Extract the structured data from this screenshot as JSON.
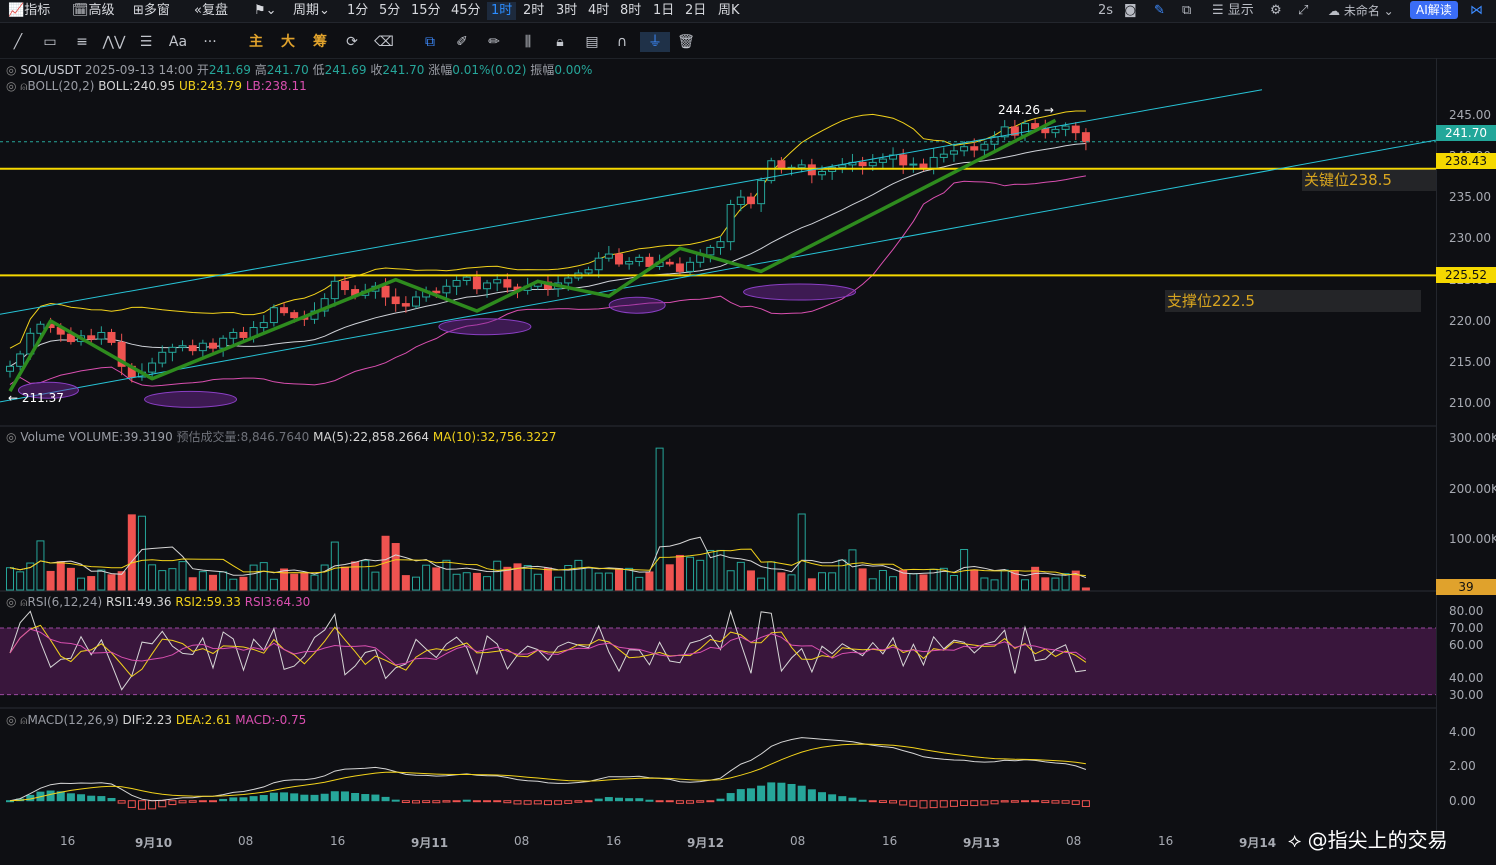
{
  "topbar": {
    "items": [
      "指标",
      "高级",
      "多窗",
      "复盘",
      "周期",
      "1分",
      "5分",
      "15分",
      "45分",
      "1时",
      "2时",
      "3时",
      "4时",
      "8时",
      "1日",
      "2日",
      "周K"
    ],
    "active_period": "1时",
    "refresh": "2s",
    "display": "显示",
    "user": "未命名",
    "ai_button": "AI解读"
  },
  "toolbar": {
    "text_tool": "Aa",
    "more": "···",
    "main_label": "主",
    "big_label": "大",
    "chip_label": "筹"
  },
  "main_panel": {
    "symbol": "SOL/USDT",
    "datetime": "2025-09-13 14:00",
    "open_label": "开",
    "open": "241.69",
    "high_label": "高",
    "high": "241.70",
    "low_label": "低",
    "low": "241.69",
    "close_label": "收",
    "close": "241.70",
    "change_label": "涨幅",
    "change": "0.01%(0.02)",
    "amplitude_label": "振幅",
    "amplitude": "0.00%",
    "boll_name": "BOLL(20,2)",
    "boll_mid": "BOLL:240.95",
    "boll_ub": "UB:243.79",
    "boll_lb": "LB:238.11",
    "high_marker": "244.26",
    "low_marker": "211.37",
    "last_price_tag": "241.70",
    "line1_tag": "238.43",
    "line2_tag": "225.52",
    "note_key": "关键位238.5",
    "note_support": "支撑位222.5",
    "price_ticks": [
      "245.00",
      "240.00",
      "235.00",
      "230.00",
      "225.00",
      "220.00",
      "215.00",
      "210.00"
    ]
  },
  "volume_panel": {
    "name": "Volume",
    "volume": "VOLUME:39.3190",
    "est_label": "预估成交量:8,846.7640",
    "ma5": "MA(5):22,858.2664",
    "ma10": "MA(10):32,756.3227",
    "ticks": [
      "300.00K",
      "200.00K",
      "100.00K"
    ],
    "last_tag": "39"
  },
  "rsi_panel": {
    "name": "RSI(6,12,24)",
    "rsi1": "RSI1:49.36",
    "rsi2": "RSI2:59.33",
    "rsi3": "RSI3:64.30",
    "ticks": [
      "80.00",
      "70.00",
      "60.00",
      "40.00",
      "30.00"
    ]
  },
  "macd_panel": {
    "name": "MACD(12,26,9)",
    "dif": "DIF:2.23",
    "dea": "DEA:2.61",
    "macd": "MACD:-0.75",
    "ticks": [
      "4.00",
      "2.00",
      "0.00"
    ]
  },
  "x_axis": [
    "16",
    "9月10",
    "08",
    "16",
    "9月11",
    "08",
    "16",
    "9月12",
    "08",
    "16",
    "9月13",
    "08",
    "16",
    "9月14"
  ],
  "watermark": "@指尖上的交易",
  "colors": {
    "up": "#26a69a",
    "down": "#ef5350",
    "accent": "#2b8cff",
    "level_line": "#f5d800",
    "channel": "#27c3d6",
    "trend": "#2e8b1e",
    "boll_upper": "#f2d21b",
    "boll_lower": "#d94fb0"
  },
  "chart_data": {
    "type": "candlestick",
    "symbol": "SOL/USDT",
    "interval": "1时",
    "ylim": [
      208,
      247
    ],
    "horizontal_levels": [
      238.43,
      225.52
    ],
    "trend_points": [
      211.5,
      220.0,
      213.0,
      225.0,
      221.2,
      224.8,
      223.0,
      228.8,
      226.0,
      244.3
    ],
    "closes": [
      214.5,
      216.0,
      218.5,
      219.6,
      219.2,
      218.4,
      217.5,
      218.2,
      217.8,
      218.6,
      217.4,
      214.5,
      213.2,
      213.8,
      214.9,
      216.2,
      216.8,
      217.0,
      216.4,
      217.3,
      216.7,
      217.9,
      218.6,
      218.0,
      219.2,
      219.8,
      221.6,
      221.0,
      220.4,
      220.2,
      221.2,
      222.7,
      224.8,
      223.8,
      223.1,
      223.6,
      224.2,
      222.9,
      222.1,
      221.8,
      222.9,
      223.6,
      223.4,
      224.2,
      224.9,
      225.3,
      223.9,
      224.6,
      225.0,
      224.1,
      223.7,
      224.2,
      224.7,
      223.9,
      224.6,
      225.2,
      225.8,
      226.2,
      227.6,
      228.1,
      226.9,
      227.2,
      227.7,
      226.6,
      227.1,
      226.9,
      226.0,
      227.1,
      228.0,
      228.9,
      229.6,
      234.1,
      235.0,
      234.2,
      237.0,
      239.4,
      238.4,
      238.6,
      238.9,
      237.7,
      238.1,
      238.6,
      238.9,
      239.2,
      238.8,
      239.2,
      239.6,
      240.1,
      238.9,
      239.0,
      238.5,
      239.8,
      240.2,
      240.6,
      241.1,
      240.7,
      241.4,
      242.3,
      243.5,
      242.5,
      243.9,
      243.3,
      242.8,
      243.2,
      243.6,
      242.8,
      241.7
    ]
  }
}
